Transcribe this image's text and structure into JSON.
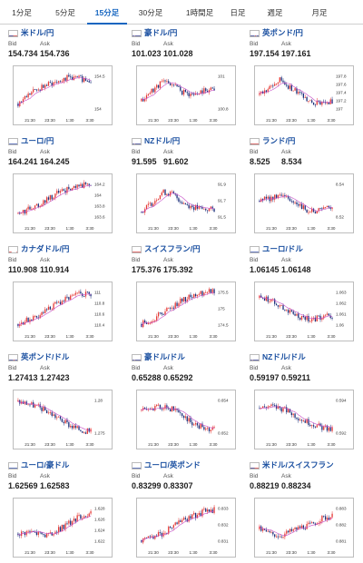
{
  "tabs": [
    {
      "label": "1分足",
      "active": false
    },
    {
      "label": "5分足",
      "active": false
    },
    {
      "label": "15分足",
      "active": true
    },
    {
      "label": "30分足",
      "active": false
    },
    {
      "label": "1時間足",
      "active": false
    },
    {
      "label": "日足",
      "active": false
    },
    {
      "label": "週足",
      "active": false
    },
    {
      "label": "月足",
      "active": false
    }
  ],
  "labels": {
    "bid": "Bid",
    "ask": "Ask"
  },
  "colors": {
    "up": "#e53935",
    "down": "#1a2e7a",
    "ma": "#c64bc6",
    "link": "#1a4fa0",
    "active_tab": "#1565c0"
  },
  "cards": [
    {
      "name": "米ドル/円",
      "flag": "flag-us-icon",
      "bid": "154.734",
      "ask": "154.736",
      "chart_data": {
        "type": "candlestick",
        "yticks": [
          "154.5",
          "154"
        ],
        "xticks": [
          "21:30",
          "23:30",
          "1:30",
          "3:30"
        ],
        "trend": [
          0.25,
          0.45,
          0.6,
          0.7,
          0.8,
          0.85,
          0.82,
          0.78
        ]
      }
    },
    {
      "name": "豪ドル/円",
      "flag": "flag-au-icon",
      "bid": "101.023",
      "ask": "101.028",
      "chart_data": {
        "type": "candlestick",
        "yticks": [
          "101",
          "100.8"
        ],
        "xticks": [
          "21:30",
          "23:30",
          "1:30",
          "3:30"
        ],
        "trend": [
          0.3,
          0.55,
          0.75,
          0.7,
          0.5,
          0.45,
          0.55,
          0.6
        ]
      }
    },
    {
      "name": "英ポンド/円",
      "flag": "flag-uk-icon",
      "bid": "197.154",
      "ask": "197.161",
      "chart_data": {
        "type": "candlestick",
        "yticks": [
          "197.8",
          "197.6",
          "197.4",
          "197.2",
          "197"
        ],
        "xticks": [
          "21:30",
          "23:30",
          "1:30",
          "3:30"
        ],
        "trend": [
          0.45,
          0.6,
          0.8,
          0.6,
          0.45,
          0.3,
          0.25,
          0.3
        ]
      }
    },
    {
      "name": "ユーロ/円",
      "flag": "flag-eu-icon",
      "bid": "164.241",
      "ask": "164.245",
      "chart_data": {
        "type": "candlestick",
        "yticks": [
          "164.2",
          "164",
          "163.8",
          "163.6"
        ],
        "xticks": [
          "21:30",
          "23:30",
          "1:30",
          "3:30"
        ],
        "trend": [
          0.2,
          0.3,
          0.4,
          0.55,
          0.7,
          0.78,
          0.85,
          0.9
        ]
      }
    },
    {
      "name": "NZドル/円",
      "flag": "flag-nz-icon",
      "bid": "91.595",
      "ask": "91.602",
      "chart_data": {
        "type": "candlestick",
        "yticks": [
          "91.9",
          "91.7",
          "91.5"
        ],
        "xticks": [
          "21:30",
          "23:30",
          "1:30",
          "3:30"
        ],
        "trend": [
          0.25,
          0.45,
          0.7,
          0.65,
          0.45,
          0.35,
          0.3,
          0.3
        ]
      }
    },
    {
      "name": "ランド/円",
      "flag": "flag-za-icon",
      "bid": "8.525",
      "ask": "8.534",
      "chart_data": {
        "type": "candlestick",
        "yticks": [
          "8.54",
          "8.52"
        ],
        "xticks": [
          "21:30",
          "23:30",
          "1:30",
          "3:30"
        ],
        "trend": [
          0.5,
          0.55,
          0.6,
          0.5,
          0.35,
          0.25,
          0.3,
          0.4
        ]
      }
    },
    {
      "name": "カナダドル/円",
      "flag": "flag-ca-icon",
      "bid": "110.908",
      "ask": "110.914",
      "chart_data": {
        "type": "candlestick",
        "yticks": [
          "111",
          "110.8",
          "110.6",
          "110.4"
        ],
        "xticks": [
          "21:30",
          "23:30",
          "1:30",
          "3:30"
        ],
        "trend": [
          0.15,
          0.25,
          0.35,
          0.5,
          0.65,
          0.75,
          0.85,
          0.85
        ]
      }
    },
    {
      "name": "スイスフラン/円",
      "flag": "flag-ch-icon",
      "bid": "175.376",
      "ask": "175.392",
      "chart_data": {
        "type": "candlestick",
        "yticks": [
          "175.5",
          "175",
          "174.5"
        ],
        "xticks": [
          "21:30",
          "23:30",
          "1:30",
          "3:30"
        ],
        "trend": [
          0.15,
          0.25,
          0.4,
          0.55,
          0.7,
          0.8,
          0.88,
          0.92
        ]
      }
    },
    {
      "name": "ユーロ/ドル",
      "flag": "flag-eu-icon",
      "bid": "1.06145",
      "ask": "1.06148",
      "chart_data": {
        "type": "candlestick",
        "yticks": [
          "1.063",
          "1.062",
          "1.061",
          "1.06"
        ],
        "xticks": [
          "21:30",
          "23:30",
          "1:30",
          "3:30"
        ],
        "trend": [
          0.75,
          0.7,
          0.55,
          0.4,
          0.3,
          0.25,
          0.3,
          0.35
        ]
      }
    },
    {
      "name": "英ポンド/ドル",
      "flag": "flag-uk-icon",
      "bid": "1.27413",
      "ask": "1.27423",
      "chart_data": {
        "type": "candlestick",
        "yticks": [
          "1.28",
          "1.275"
        ],
        "xticks": [
          "21:30",
          "23:30",
          "1:30",
          "3:30"
        ],
        "trend": [
          0.85,
          0.8,
          0.72,
          0.6,
          0.45,
          0.3,
          0.2,
          0.15
        ]
      }
    },
    {
      "name": "豪ドル/ドル",
      "flag": "flag-au-icon",
      "bid": "0.65288",
      "ask": "0.65292",
      "chart_data": {
        "type": "candlestick",
        "yticks": [
          "0.654",
          "0.652"
        ],
        "xticks": [
          "21:30",
          "23:30",
          "1:30",
          "3:30"
        ],
        "trend": [
          0.65,
          0.7,
          0.72,
          0.68,
          0.5,
          0.35,
          0.25,
          0.2
        ]
      }
    },
    {
      "name": "NZドル/ドル",
      "flag": "flag-nz-icon",
      "bid": "0.59197",
      "ask": "0.59211",
      "chart_data": {
        "type": "candlestick",
        "yticks": [
          "0.594",
          "0.592"
        ],
        "xticks": [
          "21:30",
          "23:30",
          "1:30",
          "3:30"
        ],
        "trend": [
          0.7,
          0.75,
          0.7,
          0.6,
          0.45,
          0.35,
          0.25,
          0.2
        ]
      }
    },
    {
      "name": "ユーロ/豪ドル",
      "flag": "flag-eu-icon",
      "bid": "1.62569",
      "ask": "1.62583",
      "chart_data": {
        "type": "candlestick",
        "yticks": [
          "1.628",
          "1.626",
          "1.624",
          "1.622"
        ],
        "xticks": [
          "21:30",
          "23:30",
          "1:30",
          "3:30"
        ],
        "trend": [
          0.3,
          0.35,
          0.3,
          0.25,
          0.4,
          0.55,
          0.7,
          0.75
        ]
      }
    },
    {
      "name": "ユーロ/英ポンド",
      "flag": "flag-eu-icon",
      "bid": "0.83299",
      "ask": "0.83307",
      "chart_data": {
        "type": "candlestick",
        "yticks": [
          "0.833",
          "0.832",
          "0.831"
        ],
        "xticks": [
          "21:30",
          "23:30",
          "1:30",
          "3:30"
        ],
        "trend": [
          0.15,
          0.22,
          0.3,
          0.45,
          0.6,
          0.7,
          0.8,
          0.85
        ]
      }
    },
    {
      "name": "米ドル/スイスフラン",
      "flag": "flag-us-icon",
      "bid": "0.88219",
      "ask": "0.88234",
      "chart_data": {
        "type": "candlestick",
        "yticks": [
          "0.883",
          "0.882",
          "0.881"
        ],
        "xticks": [
          "21:30",
          "23:30",
          "1:30",
          "3:30"
        ],
        "trend": [
          0.4,
          0.3,
          0.25,
          0.35,
          0.45,
          0.5,
          0.65,
          0.7
        ]
      }
    }
  ]
}
